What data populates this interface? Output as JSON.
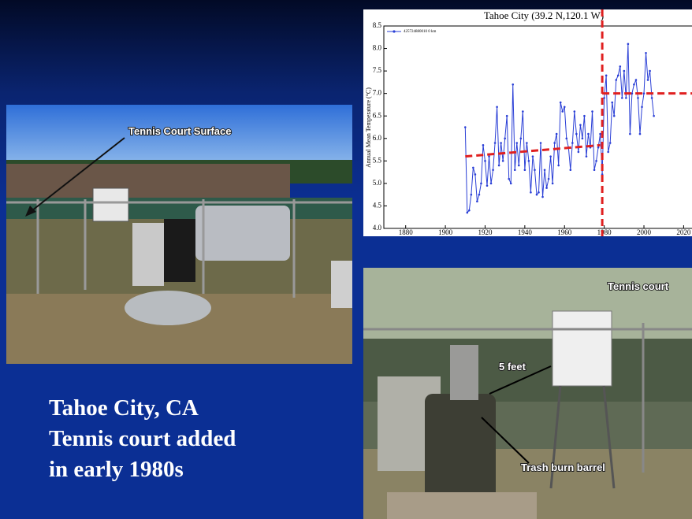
{
  "slide": {
    "caption": [
      "Tahoe City, CA",
      "Tennis court added",
      "in early 1980s"
    ],
    "photo_left": {
      "label": "Tennis Court Surface"
    },
    "photo_right": {
      "labels": [
        "Tennis court",
        "5 feet",
        "Trash burn barrel"
      ]
    }
  },
  "chart_data": {
    "type": "line",
    "title": "Tahoe City (39.2 N,120.1 W)",
    "ylabel": "Annual Mean Temperature (°C)",
    "x": [
      1910,
      1911,
      1912,
      1913,
      1914,
      1915,
      1916,
      1917,
      1918,
      1919,
      1920,
      1921,
      1922,
      1923,
      1924,
      1925,
      1926,
      1927,
      1928,
      1929,
      1930,
      1931,
      1932,
      1933,
      1934,
      1935,
      1936,
      1937,
      1938,
      1939,
      1940,
      1941,
      1942,
      1943,
      1944,
      1945,
      1946,
      1947,
      1948,
      1949,
      1950,
      1951,
      1952,
      1953,
      1954,
      1955,
      1956,
      1957,
      1958,
      1959,
      1960,
      1961,
      1962,
      1963,
      1964,
      1965,
      1966,
      1967,
      1968,
      1969,
      1970,
      1971,
      1972,
      1973,
      1974,
      1975,
      1976,
      1977,
      1978,
      1979,
      1980,
      1981,
      1982,
      1983,
      1984,
      1985,
      1986,
      1987,
      1988,
      1989,
      1990,
      1991,
      1992,
      1993,
      1994,
      1995,
      1996,
      1997,
      1998,
      1999,
      2000,
      2001,
      2002,
      2003,
      2004,
      2005
    ],
    "series": [
      {
        "name": "425724880010 0 km",
        "color": "#2a3fd6",
        "values": [
          6.25,
          4.35,
          4.4,
          4.75,
          5.35,
          5.2,
          4.6,
          4.75,
          5.0,
          5.85,
          5.5,
          4.95,
          5.6,
          5.0,
          5.3,
          5.9,
          6.7,
          5.4,
          5.9,
          5.5,
          6.0,
          6.5,
          5.1,
          5.0,
          7.2,
          5.3,
          5.9,
          5.4,
          6.0,
          6.6,
          5.3,
          5.9,
          5.5,
          4.8,
          5.6,
          5.3,
          4.75,
          4.8,
          5.9,
          4.7,
          5.3,
          4.9,
          5.1,
          5.6,
          5.0,
          5.9,
          6.1,
          5.4,
          6.8,
          6.6,
          6.7,
          6.0,
          5.8,
          5.3,
          5.9,
          6.6,
          6.1,
          5.7,
          6.3,
          6.0,
          6.5,
          5.6,
          6.1,
          5.8,
          6.6,
          5.3,
          5.5,
          5.8,
          6.1,
          5.2,
          6.9,
          7.4,
          5.7,
          5.9,
          6.8,
          6.5,
          7.3,
          7.4,
          7.6,
          6.9,
          7.5,
          6.9,
          8.1,
          6.1,
          7.0,
          7.2,
          7.3,
          6.9,
          6.1,
          6.7,
          7.0,
          7.9,
          7.3,
          7.5,
          6.9,
          6.5
        ]
      }
    ],
    "trend_lines": [
      {
        "x": [
          1910,
          1978
        ],
        "values": [
          5.6,
          5.85
        ],
        "color": "#e02020"
      },
      {
        "x": [
          1979,
          2025
        ],
        "values": [
          7.0,
          7.0
        ],
        "color": "#e02020"
      }
    ],
    "vertical_line": {
      "x": 1979,
      "color": "#e02020"
    },
    "xlim": [
      1869,
      2025
    ],
    "xticks": [
      1880,
      1900,
      1920,
      1940,
      1960,
      1980,
      2000,
      2020
    ],
    "ylim": [
      4.0,
      8.5
    ],
    "yticks": [
      {
        "value": 4,
        "label": "4.0"
      },
      {
        "value": 4.5,
        "label": "4.5"
      },
      {
        "value": 5,
        "label": "5.0"
      },
      {
        "value": 5.5,
        "label": "5.5"
      },
      {
        "value": 6,
        "label": "6.0"
      },
      {
        "value": 6.5,
        "label": "6.5"
      },
      {
        "value": 7,
        "label": "7.0"
      },
      {
        "value": 7.5,
        "label": "7.5"
      },
      {
        "value": 8,
        "label": "8.0"
      },
      {
        "value": 8.5,
        "label": "8.5"
      }
    ],
    "legend": "upper left"
  }
}
